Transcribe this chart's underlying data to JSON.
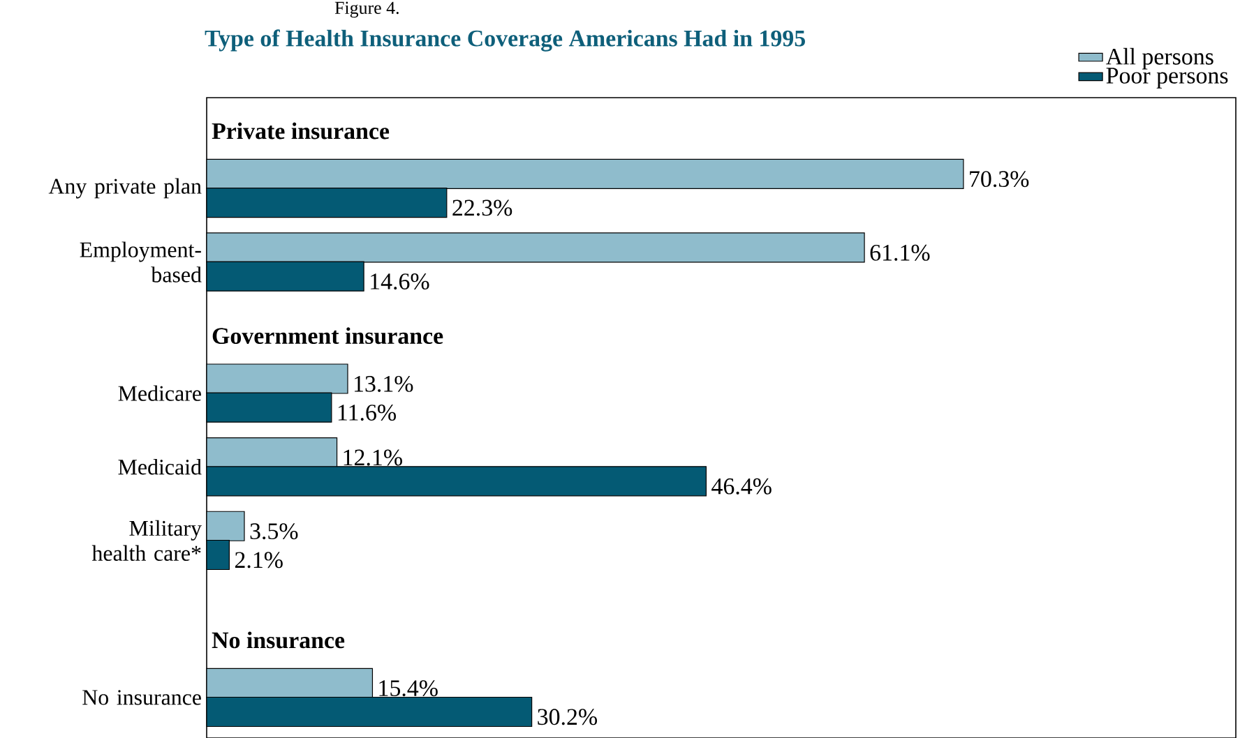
{
  "chart_data": {
    "type": "bar",
    "orientation": "horizontal",
    "title": "Type of Health Insurance Coverage Americans Had in 1995",
    "annotations": [
      "Figure 4.",
      "Private insurance",
      "Government insurance",
      "No insurance"
    ],
    "categories": [
      "Any private plan",
      "Employment-based",
      "Medicare",
      "Medicaid",
      "Military health care*",
      "No insurance"
    ],
    "series": [
      {
        "name": "All persons",
        "color": "#8fbccc",
        "values": [
          70.3,
          61.1,
          13.1,
          12.1,
          3.5,
          15.4
        ],
        "value_labels": [
          "70.3%",
          "61.1%",
          "13.1%",
          "12.1%",
          "3.5%",
          "15.4%"
        ]
      },
      {
        "name": "Poor persons",
        "color": "#045a74",
        "values": [
          22.3,
          14.6,
          11.6,
          46.4,
          2.1,
          30.2
        ],
        "value_labels": [
          "22.3%",
          "14.6%",
          "11.6%",
          "46.4%",
          "2.1%",
          "30.2%"
        ]
      }
    ],
    "xlim": [
      0,
      95.6
    ],
    "tick_labels": "y",
    "legend": "top right",
    "grid": false
  }
}
